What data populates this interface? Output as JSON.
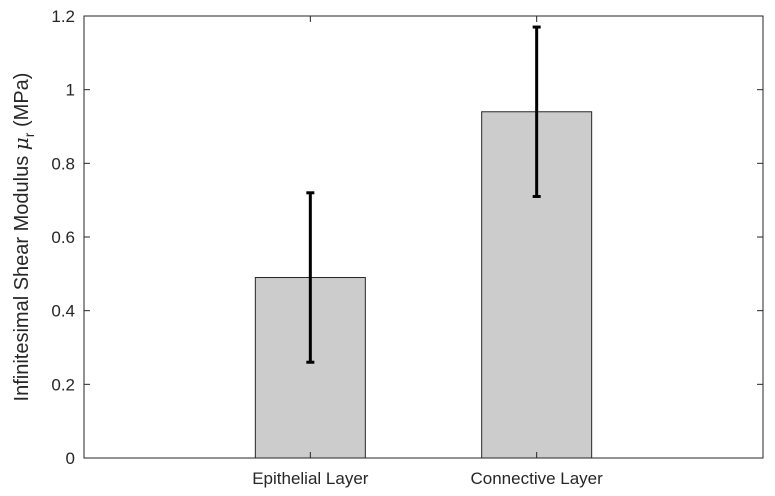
{
  "chart_data": {
    "type": "bar",
    "categories": [
      "Epithelial Layer",
      "Connective Layer"
    ],
    "values": [
      0.49,
      0.94
    ],
    "error_low": [
      0.26,
      0.71
    ],
    "error_high": [
      0.72,
      1.17
    ],
    "ylim": [
      0,
      1.2
    ],
    "yticks": [
      0,
      0.2,
      0.4,
      0.6,
      0.8,
      1,
      1.2
    ],
    "ytick_labels": [
      "0",
      "0.2",
      "0.4",
      "0.6",
      "0.8",
      "1",
      "1.2"
    ],
    "xlim": [
      0,
      3
    ],
    "bar_positions": [
      1,
      2
    ],
    "ylabel": {
      "prefix": "Infinitesimal Shear Modulus ",
      "symbol": "μ",
      "subscript": "r",
      "suffix": " (MPa)"
    },
    "bar_color": "#cccccc",
    "bar_edge_color": "#262626",
    "error_color": "#000000",
    "grid": false
  }
}
